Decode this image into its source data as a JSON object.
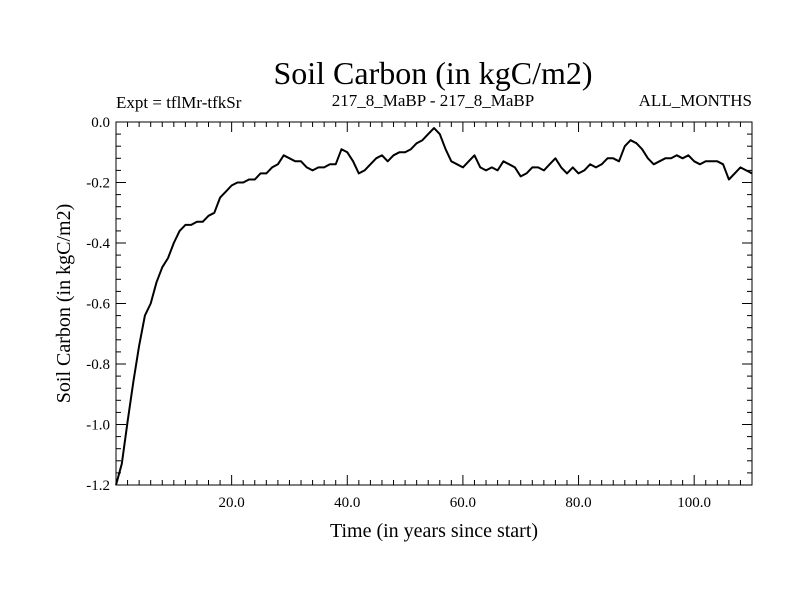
{
  "chart_data": {
    "type": "line",
    "title": "Soil Carbon (in kgC/m2)",
    "subtitle_left": "Expt = tflMr-tfkSr",
    "subtitle_center": "217_8_MaBP - 217_8_MaBP",
    "subtitle_right": "ALL_MONTHS",
    "xlabel": "Time (in years since start)",
    "ylabel": "Soil Carbon (in kgC/m2)",
    "xlim": [
      0,
      110
    ],
    "ylim": [
      -1.2,
      0.0
    ],
    "x_major_ticks": [
      20,
      40,
      60,
      80,
      100
    ],
    "x_tick_labels": [
      "20.0",
      "40.0",
      "60.0",
      "80.0",
      "100.0"
    ],
    "y_major_ticks": [
      0.0,
      -0.2,
      -0.4,
      -0.6,
      -0.8,
      -1.0,
      -1.2
    ],
    "y_tick_labels": [
      "0.0",
      "-0.2",
      "-0.4",
      "-0.6",
      "-0.8",
      "-1.0",
      "-1.2"
    ],
    "series": [
      {
        "name": "Soil Carbon",
        "color": "#000000",
        "x": [
          0,
          1,
          2,
          3,
          4,
          5,
          6,
          7,
          8,
          9,
          10,
          11,
          12,
          13,
          14,
          15,
          16,
          17,
          18,
          19,
          20,
          21,
          22,
          23,
          24,
          25,
          26,
          27,
          28,
          29,
          30,
          31,
          32,
          33,
          34,
          35,
          36,
          37,
          38,
          39,
          40,
          41,
          42,
          43,
          44,
          45,
          46,
          47,
          48,
          49,
          50,
          51,
          52,
          53,
          54,
          55,
          56,
          57,
          58,
          59,
          60,
          61,
          62,
          63,
          64,
          65,
          66,
          67,
          68,
          69,
          70,
          71,
          72,
          73,
          74,
          75,
          76,
          77,
          78,
          79,
          80,
          81,
          82,
          83,
          84,
          85,
          86,
          87,
          88,
          89,
          90,
          91,
          92,
          93,
          94,
          95,
          96,
          97,
          98,
          99,
          100,
          101,
          102,
          103,
          104,
          105,
          106,
          107,
          108,
          109,
          110
        ],
        "values": [
          -1.2,
          -1.13,
          -0.99,
          -0.86,
          -0.74,
          -0.64,
          -0.6,
          -0.53,
          -0.48,
          -0.45,
          -0.4,
          -0.36,
          -0.34,
          -0.34,
          -0.33,
          -0.33,
          -0.31,
          -0.3,
          -0.25,
          -0.23,
          -0.21,
          -0.2,
          -0.2,
          -0.19,
          -0.19,
          -0.17,
          -0.17,
          -0.15,
          -0.14,
          -0.11,
          -0.12,
          -0.13,
          -0.13,
          -0.15,
          -0.16,
          -0.15,
          -0.15,
          -0.14,
          -0.14,
          -0.09,
          -0.1,
          -0.13,
          -0.17,
          -0.16,
          -0.14,
          -0.12,
          -0.11,
          -0.13,
          -0.11,
          -0.1,
          -0.1,
          -0.09,
          -0.07,
          -0.06,
          -0.04,
          -0.02,
          -0.04,
          -0.09,
          -0.13,
          -0.14,
          -0.15,
          -0.13,
          -0.11,
          -0.15,
          -0.16,
          -0.15,
          -0.16,
          -0.13,
          -0.14,
          -0.15,
          -0.18,
          -0.17,
          -0.15,
          -0.15,
          -0.16,
          -0.14,
          -0.12,
          -0.15,
          -0.17,
          -0.15,
          -0.17,
          -0.16,
          -0.14,
          -0.15,
          -0.14,
          -0.12,
          -0.12,
          -0.13,
          -0.08,
          -0.06,
          -0.07,
          -0.09,
          -0.12,
          -0.14,
          -0.13,
          -0.12,
          -0.12,
          -0.11,
          -0.12,
          -0.11,
          -0.13,
          -0.14,
          -0.13,
          -0.13,
          -0.13,
          -0.14,
          -0.19,
          -0.17,
          -0.15,
          -0.16,
          -0.17
        ]
      }
    ]
  }
}
